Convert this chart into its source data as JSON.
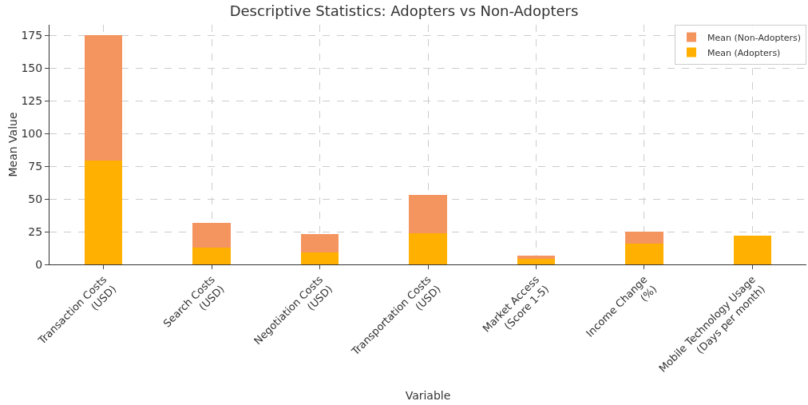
{
  "chart_data": {
    "type": "bar",
    "title": "Descriptive Statistics: Adopters vs Non-Adopters",
    "xlabel": "Variable",
    "ylabel": "Mean Value",
    "categories": [
      "Transaction Costs\n(USD)",
      "Search Costs\n(USD)",
      "Negotiation Costs\n(USD)",
      "Transportation Costs\n(USD)",
      "Market Access\n(Score 1-5)",
      "Income Change\n(%)",
      "Mobile Technology Usage\n(Days per month)"
    ],
    "series": [
      {
        "name": "Mean (Adopters)",
        "color": "#ffb000",
        "values": [
          79,
          13,
          9,
          24,
          4,
          16,
          22
        ]
      },
      {
        "name": "Mean (Non-Adopters)",
        "color": "#f4955f",
        "values": [
          96,
          19,
          14,
          29,
          2.5,
          9,
          null
        ]
      }
    ],
    "stacked": true,
    "ylim": [
      0,
      183
    ],
    "yticks": [
      0,
      25,
      50,
      75,
      100,
      125,
      150,
      175
    ],
    "grid": true,
    "legend": "top right"
  }
}
